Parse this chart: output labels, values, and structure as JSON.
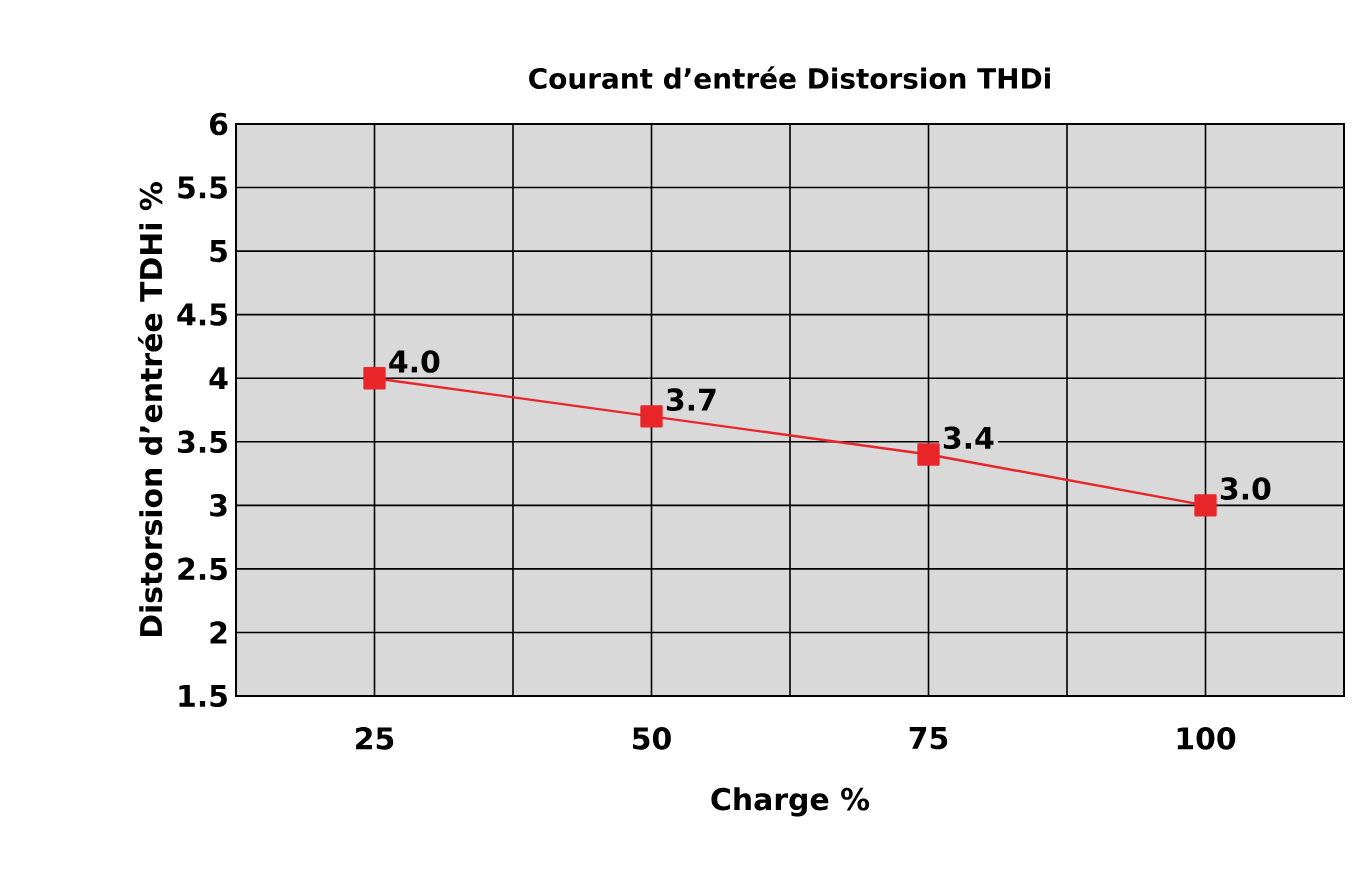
{
  "chart_data": {
    "type": "line",
    "title": "Courant d’entrée Distorsion THDi",
    "xlabel": "Charge %",
    "ylabel": "Distorsion d’entrée TDHi %",
    "categories": [
      "25",
      "50",
      "75",
      "100"
    ],
    "series": [
      {
        "color": "#e8262a",
        "values": [
          4.0,
          3.7,
          3.4,
          3.0
        ],
        "value_labels": [
          "4.0",
          "3.7",
          "3.4",
          "3.0"
        ]
      }
    ],
    "ylim": [
      1.5,
      6
    ],
    "yticks": [
      1.5,
      2,
      2.5,
      3,
      3.5,
      4,
      4.5,
      5,
      5.5,
      6
    ],
    "grid": true,
    "marker": "square",
    "line_style": "solid"
  }
}
